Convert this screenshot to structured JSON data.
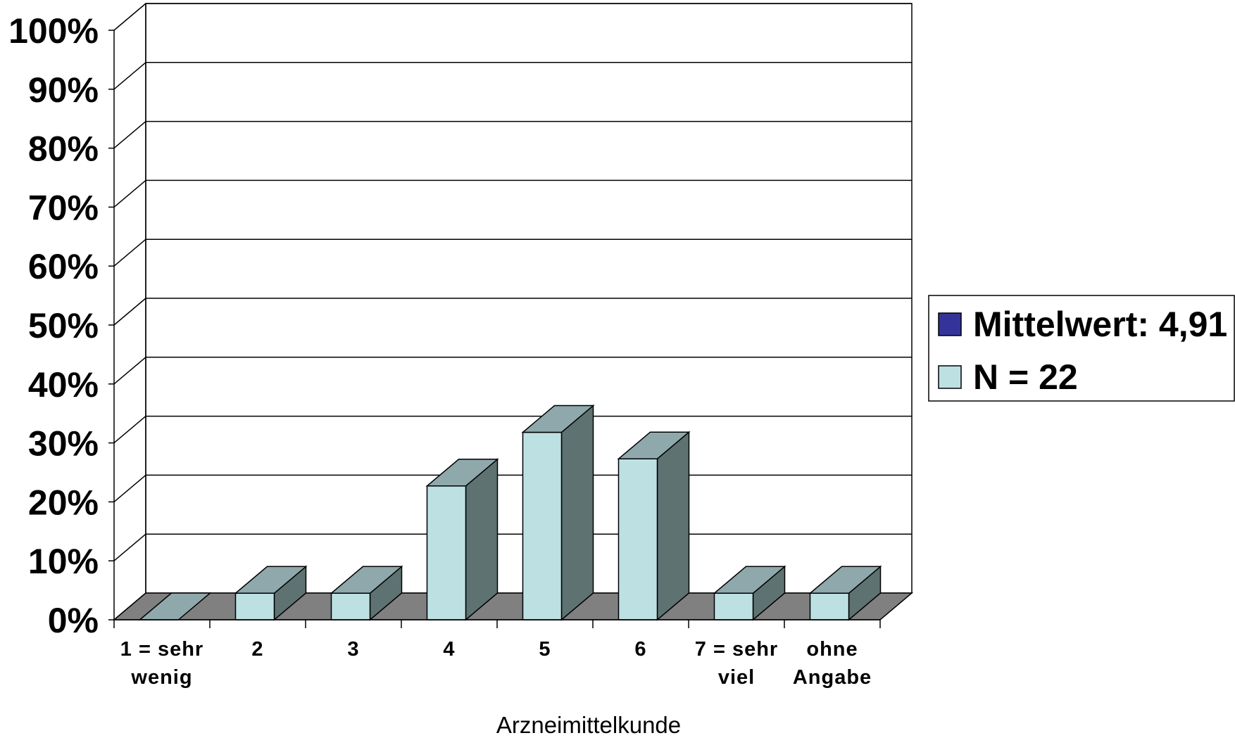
{
  "chart_data": {
    "type": "bar",
    "title": "",
    "xlabel": "Arzneimittelkunde",
    "ylabel": "",
    "categories": [
      [
        "1 = sehr",
        "wenig"
      ],
      [
        "2"
      ],
      [
        "3"
      ],
      [
        "4"
      ],
      [
        "5"
      ],
      [
        "6"
      ],
      [
        "7 = sehr",
        "viel"
      ],
      [
        "ohne",
        "Angabe"
      ]
    ],
    "values": [
      0,
      4.5,
      4.5,
      22.7,
      31.8,
      27.3,
      4.5,
      4.5
    ],
    "ylim": [
      0,
      100
    ],
    "yticks": [
      "0%",
      "10%",
      "20%",
      "30%",
      "40%",
      "50%",
      "60%",
      "70%",
      "80%",
      "90%",
      "100%"
    ],
    "grid": true,
    "three_d": true,
    "legend": {
      "placement": "right",
      "entries": [
        {
          "label": "Mittelwert: 4,91",
          "color": "#333399"
        },
        {
          "label": "N = 22",
          "color": "#bde0e3"
        }
      ]
    },
    "colors": {
      "bar_front": "#bde0e3",
      "bar_top": "#8fa8ab",
      "bar_side": "#5f7272",
      "floor": "#808080"
    }
  }
}
